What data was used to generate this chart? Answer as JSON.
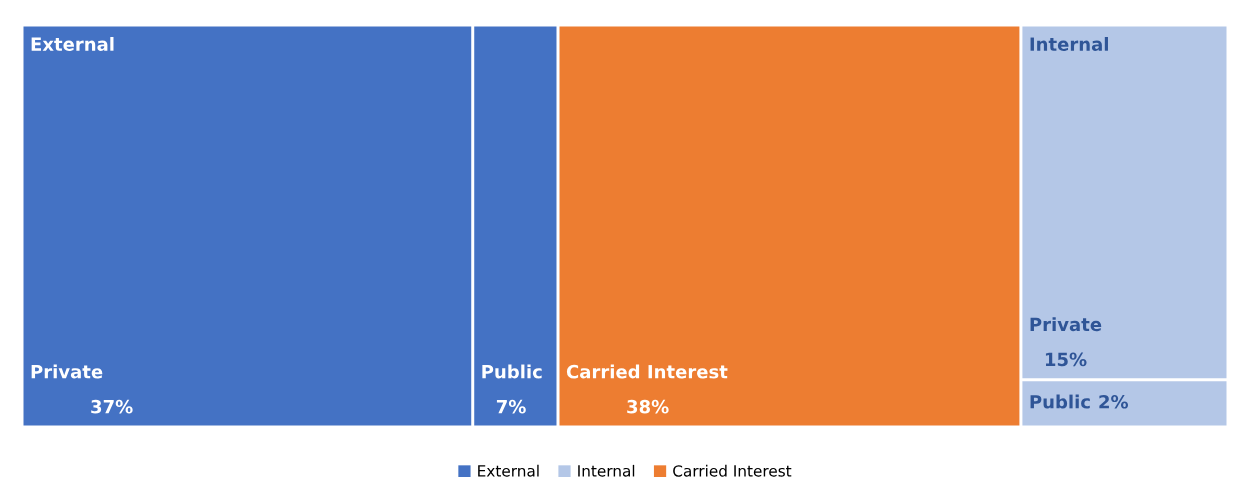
{
  "chart_data": {
    "type": "other",
    "categories": [
      "Private",
      "Public",
      "Carried Interest",
      "Private",
      "Public"
    ],
    "series": [
      {
        "name": "External",
        "color": "#4472c4",
        "values": [
          37,
          7,
          null,
          null,
          null
        ],
        "value_labels": [
          "37%",
          "7%",
          null,
          null,
          null
        ]
      },
      {
        "name": "Internal",
        "color": "#b4c7e7",
        "values": [
          null,
          null,
          null,
          15,
          2
        ],
        "value_labels": [
          null,
          null,
          null,
          "15%",
          "2%"
        ]
      },
      {
        "name": "Carried Interest",
        "color": "#ed7d31",
        "values": [
          null,
          null,
          38,
          null,
          null
        ],
        "value_labels": [
          null,
          null,
          "38%",
          null,
          null
        ]
      }
    ],
    "legend": "bottom"
  }
}
